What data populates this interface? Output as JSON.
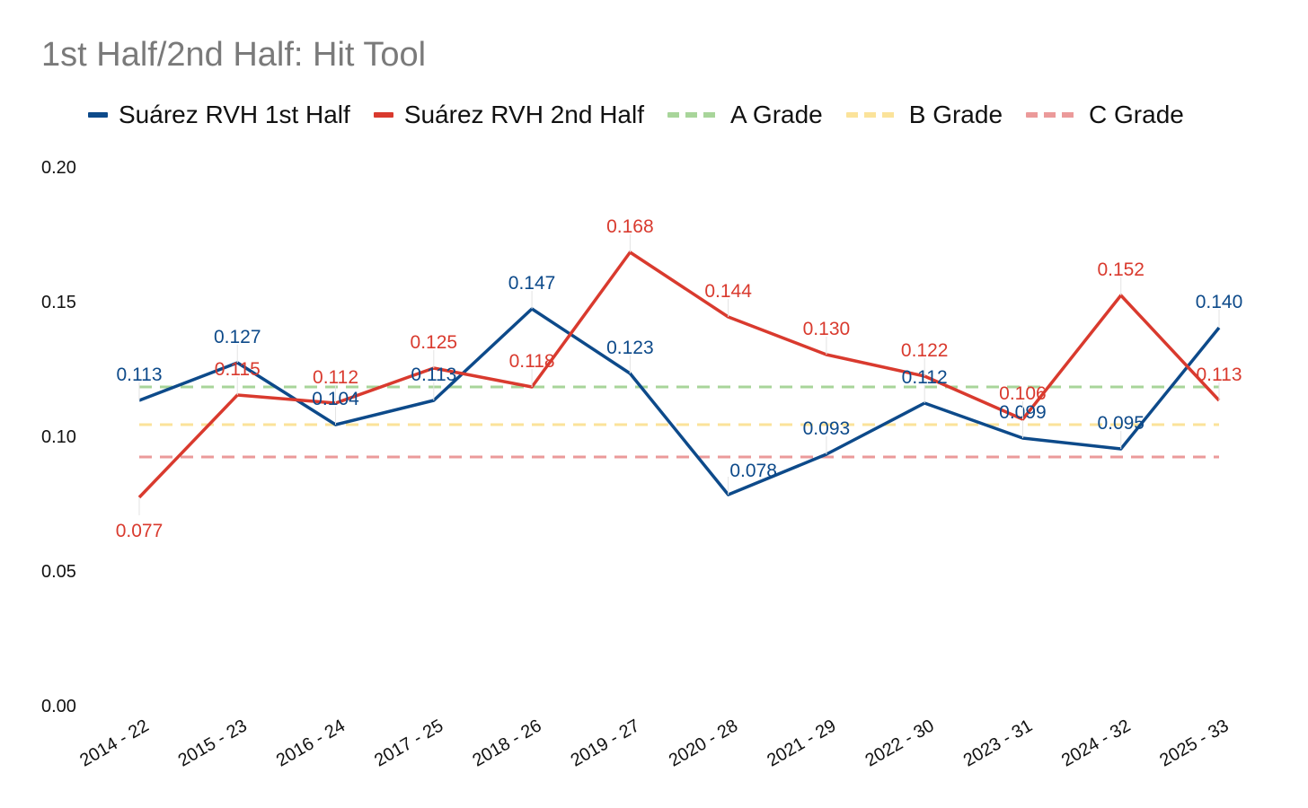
{
  "chart_data": {
    "type": "line",
    "title": "1st Half/2nd Half: Hit Tool",
    "xlabel": "",
    "ylabel": "",
    "ylim": [
      0,
      0.2
    ],
    "yticks": [
      "0.00",
      "0.05",
      "0.10",
      "0.15",
      "0.20"
    ],
    "grid": false,
    "legend_position": "top",
    "categories": [
      "2014 - 22",
      "2015 - 23",
      "2016 - 24",
      "2017 - 25",
      "2018 - 26",
      "2019 - 27",
      "2020 - 28",
      "2021 - 29",
      "2022 - 30",
      "2023 - 31",
      "2024 - 32",
      "2025 - 33"
    ],
    "series": [
      {
        "name": "Suárez RVH 1st Half",
        "color": "#0d4a8a",
        "values": [
          0.113,
          0.127,
          0.104,
          0.113,
          0.147,
          0.123,
          0.078,
          0.093,
          0.112,
          0.099,
          0.095,
          0.14
        ],
        "labels": [
          "0.113",
          "0.127",
          "0.104",
          "0.113",
          "0.147",
          "0.123",
          "0.078",
          "0.093",
          "0.112",
          "0.099",
          "0.095",
          "0.140"
        ]
      },
      {
        "name": "Suárez RVH 2nd Half",
        "color": "#d93a2e",
        "values": [
          0.077,
          0.115,
          0.112,
          0.125,
          0.118,
          0.168,
          0.144,
          0.13,
          0.122,
          0.106,
          0.152,
          0.113
        ],
        "labels": [
          "0.077",
          "0.115",
          "0.112",
          "0.125",
          "0.118",
          "0.168",
          "0.144",
          "0.130",
          "0.122",
          "0.106",
          "0.152",
          "0.113"
        ]
      }
    ],
    "reference_lines": [
      {
        "name": "A Grade",
        "value": 0.118,
        "color": "#a8d59a"
      },
      {
        "name": "B Grade",
        "value": 0.104,
        "color": "#fbe39a"
      },
      {
        "name": "C Grade",
        "value": 0.092,
        "color": "#eb9a9a"
      }
    ]
  }
}
